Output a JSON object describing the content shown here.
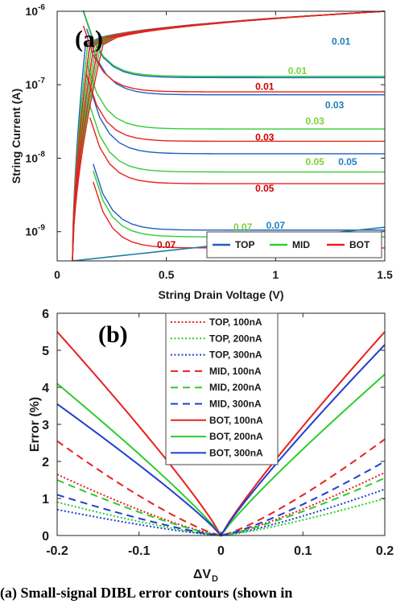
{
  "chart_data": [
    {
      "id": "a",
      "type": "line",
      "panel_label": "(a)",
      "xlabel": "String Drain Voltage (V)",
      "ylabel": "String Current (A)",
      "xlim": [
        0,
        1.5
      ],
      "ylim": [
        4e-10,
        1e-06
      ],
      "yscale": "log",
      "xticks": [
        0,
        0.5,
        1,
        1.5
      ],
      "xtick_labels": [
        "0",
        "0.5",
        "1",
        "1.5"
      ],
      "yticks": [
        1e-09,
        1e-08,
        1e-07,
        1e-06
      ],
      "ytick_base": "10",
      "ytick_exponents": [
        "-9",
        "-8",
        "-7",
        "-6"
      ],
      "legend": {
        "placement": "bottom-right",
        "entries": [
          {
            "label": "TOP",
            "color": "#1f5fbf"
          },
          {
            "label": "MID",
            "color": "#33cc33"
          },
          {
            "label": "BOT",
            "color": "#e82020"
          }
        ]
      },
      "series": [
        {
          "name": "TOP",
          "color": "#1f5fbf",
          "contours": [
            {
              "label": "0.01",
              "current": 1.25e-07
            },
            {
              "label": "0.03",
              "current": 7.3e-08
            },
            {
              "label": "0.05",
              "current": 1.15e-08
            },
            {
              "label": "0.07",
              "current": 1.05e-09
            }
          ]
        },
        {
          "name": "MID",
          "color": "#33cc33",
          "contours": [
            {
              "label": "0.01",
              "current": 1.3e-07
            },
            {
              "label": "0.03",
              "current": 2.5e-08
            },
            {
              "label": "0.05",
              "current": 6.5e-09
            },
            {
              "label": "0.07",
              "current": 8.5e-10
            }
          ]
        },
        {
          "name": "BOT",
          "color": "#e82020",
          "contours": [
            {
              "label": "0.01",
              "current": 8e-08
            },
            {
              "label": "0.03",
              "current": 1.7e-08
            },
            {
              "label": "0.05",
              "current": 4.5e-09
            },
            {
              "label": "0.07",
              "current": 6e-10
            }
          ]
        }
      ],
      "contour_labels": [
        {
          "text": "0.01",
          "color": "#1f7fbf",
          "x": 1.3,
          "y": 3.5e-07
        },
        {
          "text": "0.01",
          "color": "#7fcf3f",
          "x": 1.1,
          "y": 1.4e-07
        },
        {
          "text": "0.01",
          "color": "#cc0000",
          "x": 0.95,
          "y": 8.5e-08
        },
        {
          "text": "0.03",
          "color": "#1f7fbf",
          "x": 1.27,
          "y": 4.8e-08
        },
        {
          "text": "0.03",
          "color": "#7fcf3f",
          "x": 1.18,
          "y": 2.9e-08
        },
        {
          "text": "0.03",
          "color": "#cc0000",
          "x": 0.95,
          "y": 1.75e-08
        },
        {
          "text": "0.05",
          "color": "#7fcf3f",
          "x": 1.18,
          "y": 8.1e-09
        },
        {
          "text": "0.05",
          "color": "#1f7fbf",
          "x": 1.33,
          "y": 8.1e-09
        },
        {
          "text": "0.05",
          "color": "#cc0000",
          "x": 0.95,
          "y": 3.5e-09
        },
        {
          "text": "0.07",
          "color": "#7fcf3f",
          "x": 0.85,
          "y": 1.05e-09
        },
        {
          "text": "0.07",
          "color": "#1f7fbf",
          "x": 1.0,
          "y": 1.1e-09
        },
        {
          "text": "0.07",
          "color": "#cc0000",
          "x": 0.5,
          "y": 6e-10
        }
      ]
    },
    {
      "id": "b",
      "type": "line",
      "panel_label": "(b)",
      "xlabel": "ΔV",
      "xlabel_sub": "D",
      "ylabel": "Error (%)",
      "xlim": [
        -0.2,
        0.2
      ],
      "ylim": [
        0,
        6
      ],
      "xticks": [
        -0.2,
        -0.1,
        0,
        0.1,
        0.2
      ],
      "xtick_labels": [
        "-0.2",
        "-0.1",
        "0",
        "0.1",
        "0.2"
      ],
      "yticks": [
        0,
        1,
        2,
        3,
        4,
        5,
        6
      ],
      "ytick_labels": [
        "0",
        "1",
        "2",
        "3",
        "4",
        "5",
        "6"
      ],
      "legend_placement": "top-center",
      "series": [
        {
          "name": "TOP, 100nA",
          "color": "#e82020",
          "style": "dotted",
          "left": 1.65,
          "right": 1.7
        },
        {
          "name": "TOP, 200nA",
          "color": "#2ecc2e",
          "style": "dotted",
          "left": 0.9,
          "right": 1.0
        },
        {
          "name": "TOP, 300nA",
          "color": "#1f3fcf",
          "style": "dotted",
          "left": 0.7,
          "right": 1.25
        },
        {
          "name": "MID, 100nA",
          "color": "#e82020",
          "style": "dashed",
          "left": 2.55,
          "right": 2.6
        },
        {
          "name": "MID, 200nA",
          "color": "#2ecc2e",
          "style": "dashed",
          "left": 1.5,
          "right": 1.55
        },
        {
          "name": "MID, 300nA",
          "color": "#1f3fcf",
          "style": "dashed",
          "left": 1.1,
          "right": 2.0
        },
        {
          "name": "BOT, 100nA",
          "color": "#e82020",
          "style": "solid",
          "left": 5.5,
          "right": 5.5
        },
        {
          "name": "BOT, 200nA",
          "color": "#2ecc2e",
          "style": "solid",
          "left": 4.1,
          "right": 4.35
        },
        {
          "name": "BOT, 300nA",
          "color": "#1f3fcf",
          "style": "solid",
          "left": 3.55,
          "right": 5.15
        }
      ]
    }
  ],
  "caption": "(a) Small-signal DIBL error contours (shown in"
}
